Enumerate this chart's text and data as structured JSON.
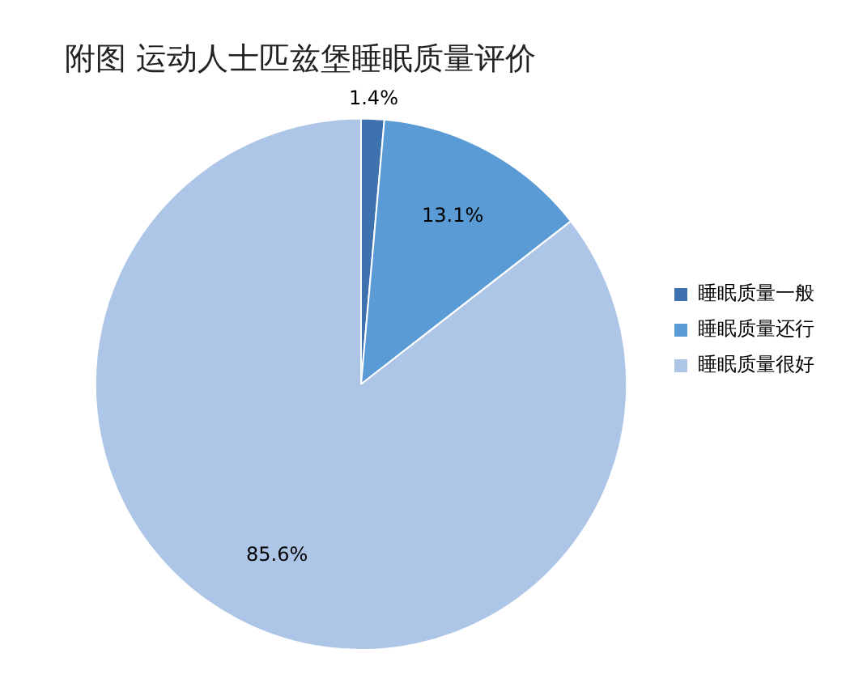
{
  "chart_data": {
    "type": "pie",
    "title": "附图 运动人士匹兹堡睡眠质量评价",
    "categories": [
      "睡眠质量一般",
      "睡眠质量还行",
      "睡眠质量很好"
    ],
    "values": [
      1.4,
      13.1,
      85.6
    ],
    "value_labels": [
      "1.4%",
      "13.1%",
      "85.6%"
    ],
    "colors": [
      "#3d72ae",
      "#5b9bd5",
      "#adc5e6"
    ],
    "legend": "right"
  }
}
